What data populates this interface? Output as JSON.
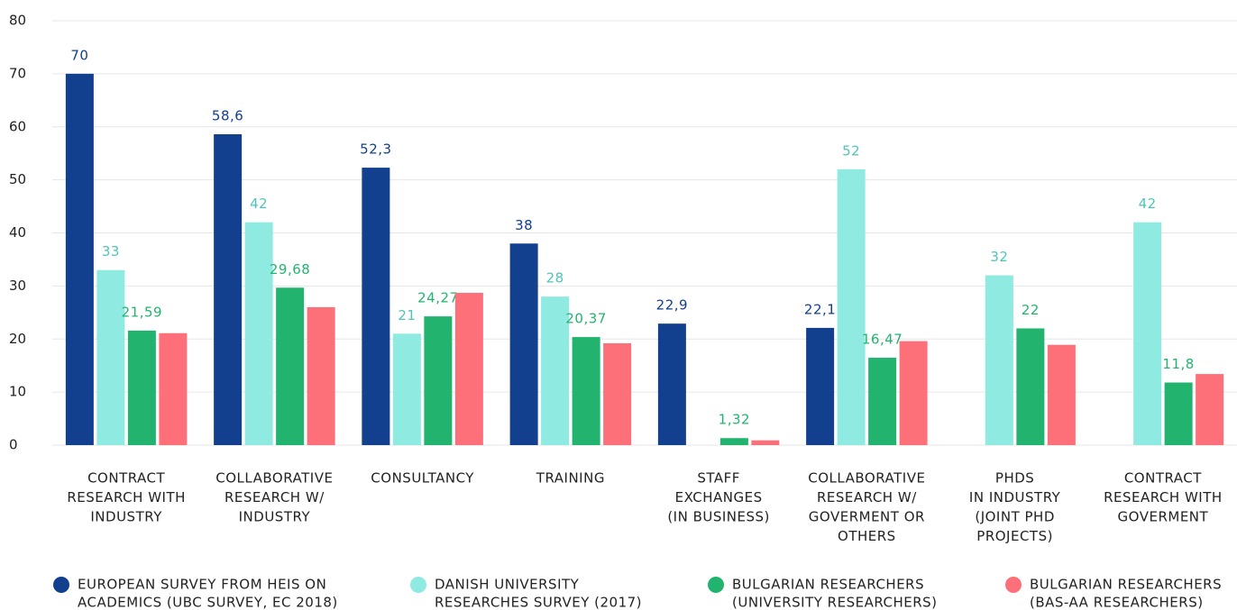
{
  "chart_data": {
    "type": "bar",
    "categories": [
      [
        "CONTRACT",
        "RESEARCH WITH",
        "INDUSTRY"
      ],
      [
        "COLLABORATIVE",
        "RESEARCH W/",
        "INDUSTRY"
      ],
      [
        "CONSULTANCY"
      ],
      [
        "TRAINING"
      ],
      [
        "STAFF",
        "EXCHANGES",
        "(IN BUSINESS)"
      ],
      [
        "COLLABORATIVE",
        "RESEARCH W/",
        "GOVERMENT OR",
        "OTHERS"
      ],
      [
        "PHDS",
        "IN INDUSTRY",
        "(JOINT PHD",
        "PROJECTS)"
      ],
      [
        "CONTRACT",
        "RESEARCH WITH",
        "GOVERMENT"
      ]
    ],
    "series": [
      {
        "name": [
          "EUROPEAN SURVEY FROM HEIS ON",
          "ACADEMICS (UBC SURVEY, EC 2018)"
        ],
        "color": "#123f8e",
        "label_color": "#123f8e",
        "values": [
          70,
          58.6,
          52.3,
          38,
          22.9,
          22.1,
          null,
          null
        ],
        "value_labels": [
          "70",
          "58,6",
          "52,3",
          "38",
          "22,9",
          "22,1",
          null,
          null
        ]
      },
      {
        "name": [
          "DANISH UNIVERSITY",
          "RESEARCHES SURVEY (2017)"
        ],
        "color": "#8feae1",
        "label_color": "#4fc4ba",
        "values": [
          33,
          42,
          21,
          28,
          null,
          52,
          32,
          42
        ],
        "value_labels": [
          "33",
          "42",
          "21",
          "28",
          null,
          "52",
          "32",
          "42"
        ]
      },
      {
        "name": [
          "BULGARIAN RESEARCHERS",
          "(UNIVERSITY RESEARCHERS)"
        ],
        "color": "#22b46e",
        "label_color": "#22b46e",
        "values": [
          21.59,
          29.68,
          24.27,
          20.37,
          1.32,
          16.47,
          22,
          11.8
        ],
        "value_labels": [
          "21,59",
          "29,68",
          "24,27",
          "20,37",
          "1,32",
          "16,47",
          "22",
          "11,8"
        ]
      },
      {
        "name": [
          "BULGARIAN RESEARCHERS",
          "(BAS-AA RESEARCHERS)"
        ],
        "color": "#fd6f79",
        "values": [
          21.1,
          26,
          28.7,
          19.2,
          0.9,
          19.6,
          18.9,
          13.4
        ]
      }
    ],
    "ylim": [
      0,
      80
    ],
    "yticks": [
      0,
      10,
      20,
      30,
      40,
      50,
      60,
      70,
      80
    ],
    "grid": true
  }
}
